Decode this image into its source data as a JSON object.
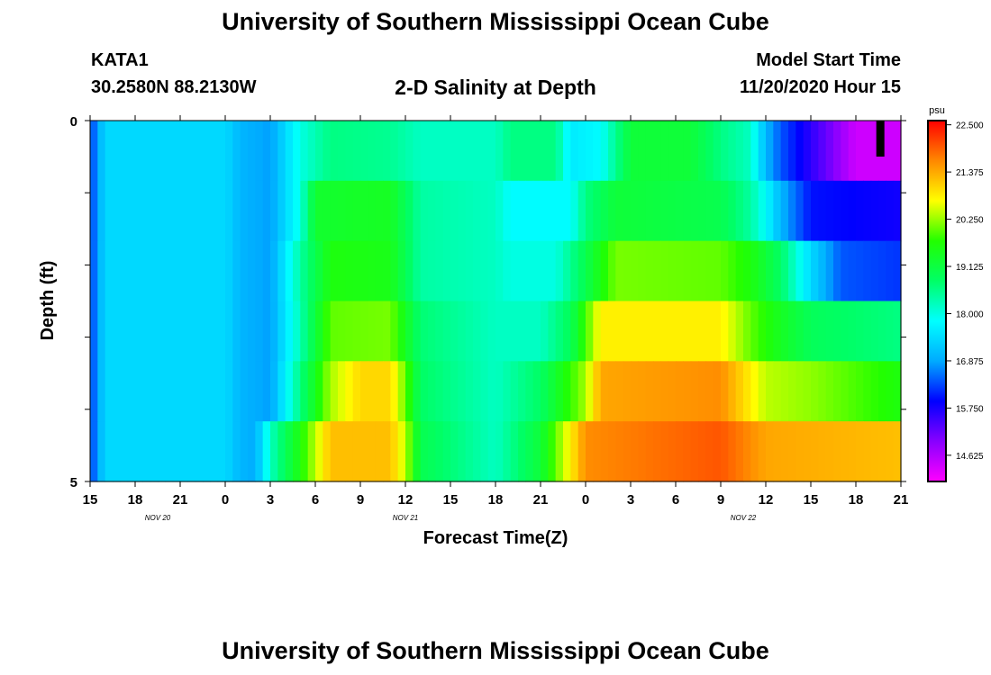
{
  "header": {
    "title": "University of Southern Mississippi Ocean Cube",
    "station_id": "KATA1",
    "station_coords": "30.2580N 88.2130W",
    "plot_title": "2-D Salinity at Depth",
    "model_start_label": "Model Start Time",
    "model_start_value": "11/20/2020 Hour 15"
  },
  "footer": {
    "title": "University of Southern Mississippi Ocean Cube"
  },
  "chart_data": {
    "type": "heatmap",
    "title": "2-D Salinity at Depth",
    "xlabel": "Forecast Time(Z)",
    "ylabel": "Depth (ft)",
    "x_tick_labels": [
      "15",
      "18",
      "21",
      "0",
      "3",
      "6",
      "9",
      "12",
      "15",
      "18",
      "21",
      "0",
      "3",
      "6",
      "9",
      "12",
      "15",
      "18",
      "21"
    ],
    "x_date_labels": [
      {
        "label": "NOV  20",
        "at_tick": 1.5
      },
      {
        "label": "NOV  21",
        "at_tick": 7
      },
      {
        "label": "NOV  22",
        "at_tick": 14.5
      }
    ],
    "y_tick_labels": [
      "0",
      "5"
    ],
    "y_range": [
      0,
      5
    ],
    "depth_levels": [
      0,
      1,
      2,
      3,
      4,
      5
    ],
    "time_start": "11/20/2020 Hour 15",
    "time_step_hours": 1,
    "colorbar": {
      "unit": "psu",
      "min": 14.0,
      "max": 22.6,
      "tick_labels": [
        "22.500",
        "21.375",
        "20.250",
        "19.125",
        "18.000",
        "16.875",
        "15.750",
        "14.625"
      ],
      "tick_values": [
        22.5,
        21.375,
        20.25,
        19.125,
        18.0,
        16.875,
        15.75,
        14.625
      ],
      "colors": [
        "#ff00ff",
        "#8800ff",
        "#0000ff",
        "#00aaff",
        "#00ffff",
        "#00ff66",
        "#22ff00",
        "#ffff00",
        "#ff8800",
        "#ff0000"
      ]
    },
    "salinity_rows": [
      {
        "depth_band": "0-1",
        "keys": [
          [
            0,
            16.2
          ],
          [
            1,
            17.4
          ],
          [
            9,
            17.4
          ],
          [
            10,
            17.0
          ],
          [
            12,
            16.8
          ],
          [
            14,
            18.0
          ],
          [
            16,
            18.6
          ],
          [
            20,
            18.5
          ],
          [
            22,
            18.2
          ],
          [
            27,
            18.2
          ],
          [
            28,
            18.6
          ],
          [
            31,
            18.6
          ],
          [
            32,
            17.6
          ],
          [
            34,
            17.8
          ],
          [
            36,
            19.2
          ],
          [
            40,
            19.2
          ],
          [
            42,
            18.6
          ],
          [
            44,
            18.2
          ],
          [
            45,
            17.0
          ],
          [
            46,
            16.4
          ],
          [
            48,
            15.6
          ],
          [
            51,
            14.4
          ],
          [
            54,
            14.4
          ]
        ]
      },
      {
        "depth_band": "1-2",
        "keys": [
          [
            0,
            16.2
          ],
          [
            1,
            17.4
          ],
          [
            9,
            17.4
          ],
          [
            10,
            17.0
          ],
          [
            12,
            16.8
          ],
          [
            14,
            18.0
          ],
          [
            15,
            19.3
          ],
          [
            20,
            19.4
          ],
          [
            22,
            18.4
          ],
          [
            27,
            18.2
          ],
          [
            28,
            17.8
          ],
          [
            32,
            17.8
          ],
          [
            33,
            18.6
          ],
          [
            35,
            19.2
          ],
          [
            42,
            19.0
          ],
          [
            44,
            18.4
          ],
          [
            45,
            17.8
          ],
          [
            46,
            17.0
          ],
          [
            48,
            16.0
          ],
          [
            54,
            15.8
          ]
        ]
      },
      {
        "depth_band": "2-3",
        "keys": [
          [
            0,
            16.2
          ],
          [
            1,
            17.4
          ],
          [
            9,
            17.4
          ],
          [
            10,
            17.0
          ],
          [
            12,
            16.8
          ],
          [
            14,
            18.4
          ],
          [
            16,
            19.6
          ],
          [
            20,
            19.5
          ],
          [
            22,
            18.4
          ],
          [
            27,
            18.2
          ],
          [
            28,
            18.0
          ],
          [
            31,
            18.0
          ],
          [
            33,
            19.0
          ],
          [
            35,
            20.1
          ],
          [
            42,
            20.0
          ],
          [
            44,
            19.6
          ],
          [
            46,
            18.8
          ],
          [
            48,
            17.4
          ],
          [
            50,
            16.4
          ],
          [
            54,
            16.2
          ]
        ]
      },
      {
        "depth_band": "3-4",
        "keys": [
          [
            0,
            16.2
          ],
          [
            1,
            17.4
          ],
          [
            9,
            17.4
          ],
          [
            10,
            17.0
          ],
          [
            12,
            16.8
          ],
          [
            14,
            18.3
          ],
          [
            16,
            20.0
          ],
          [
            20,
            20.1
          ],
          [
            22,
            18.7
          ],
          [
            27,
            18.2
          ],
          [
            30,
            18.2
          ],
          [
            32,
            18.9
          ],
          [
            34,
            20.8
          ],
          [
            42,
            20.8
          ],
          [
            44,
            20.0
          ],
          [
            46,
            19.4
          ],
          [
            48,
            18.9
          ],
          [
            54,
            18.6
          ]
        ]
      },
      {
        "depth_band": "4-5",
        "keys": [
          [
            0,
            16.2
          ],
          [
            1,
            17.4
          ],
          [
            9,
            17.4
          ],
          [
            10,
            17.0
          ],
          [
            12,
            16.8
          ],
          [
            14,
            18.6
          ],
          [
            16,
            20.3
          ],
          [
            18,
            21.0
          ],
          [
            20,
            21.0
          ],
          [
            21,
            20.0
          ],
          [
            22,
            18.8
          ],
          [
            27,
            18.2
          ],
          [
            30,
            18.8
          ],
          [
            33,
            20.3
          ],
          [
            34,
            21.4
          ],
          [
            42,
            21.6
          ],
          [
            45,
            20.4
          ],
          [
            48,
            20.2
          ],
          [
            54,
            19.6
          ]
        ]
      },
      {
        "depth_band": "5",
        "keys": [
          [
            0,
            16.2
          ],
          [
            1,
            17.4
          ],
          [
            9,
            17.4
          ],
          [
            10,
            17.0
          ],
          [
            11,
            16.9
          ],
          [
            12,
            18.2
          ],
          [
            14,
            19.6
          ],
          [
            16,
            21.2
          ],
          [
            20,
            21.2
          ],
          [
            21,
            20.4
          ],
          [
            22,
            19.0
          ],
          [
            27,
            18.2
          ],
          [
            30,
            19.2
          ],
          [
            33,
            21.6
          ],
          [
            42,
            22.0
          ],
          [
            45,
            21.4
          ],
          [
            54,
            21.2
          ]
        ]
      }
    ],
    "marker": {
      "hour_index": 52,
      "depth_band": "0-1",
      "color": "#000000"
    }
  }
}
